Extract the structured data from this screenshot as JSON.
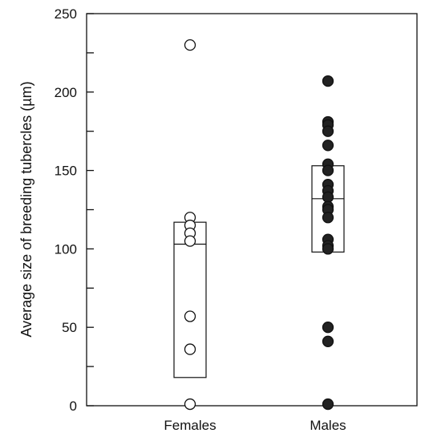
{
  "chart_data": {
    "type": "scatter",
    "title": "",
    "xlabel": "",
    "ylabel": "Average size of breeding tubercles (µm)",
    "ylim": [
      0,
      250
    ],
    "y_ticks": [
      0,
      50,
      100,
      150,
      200,
      250
    ],
    "y_minor_ticks": [
      25,
      75,
      125,
      175,
      225
    ],
    "grid": false,
    "categories": [
      "Females",
      "Males"
    ],
    "series": [
      {
        "category": "Females",
        "marker": "open-circle",
        "values": [
          230,
          120,
          115,
          110,
          105,
          57,
          36,
          1
        ],
        "box": {
          "low": 18,
          "median": 103,
          "high": 117
        }
      },
      {
        "category": "Males",
        "marker": "filled-circle",
        "values": [
          207,
          181,
          179,
          175,
          166,
          154,
          150,
          141,
          137,
          133,
          127,
          125,
          120,
          106,
          102,
          100,
          50,
          41,
          1
        ],
        "box": {
          "low": 98,
          "median": 132,
          "high": 153
        }
      }
    ]
  }
}
